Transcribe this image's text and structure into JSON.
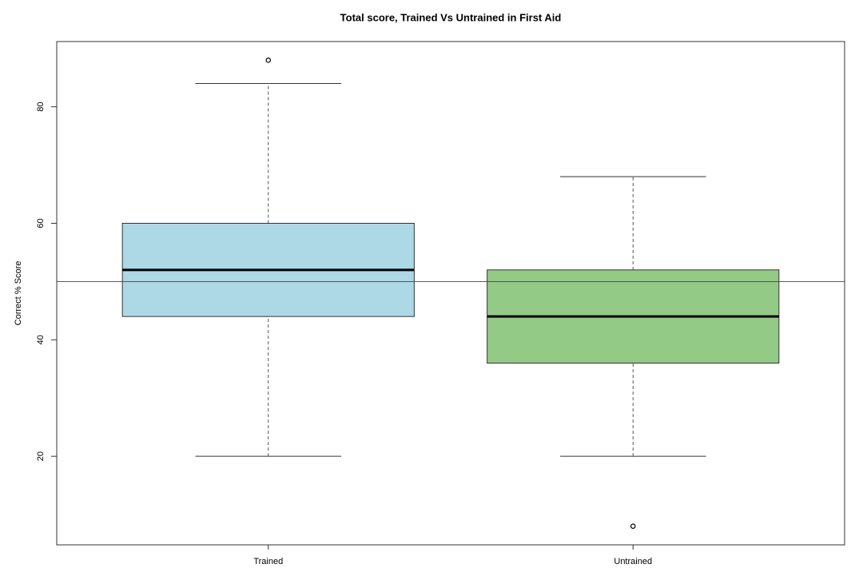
{
  "chart_data": {
    "type": "box",
    "title": "Total score, Trained Vs Untrained in First Aid",
    "y_label": "Correct % Score",
    "categories": [
      "Trained",
      "Untrained"
    ],
    "boxes": [
      {
        "whisker_low": 20,
        "q1": 44,
        "median": 52,
        "q3": 60,
        "whisker_high": 84,
        "outliers": [
          88
        ],
        "color": "#add8e6"
      },
      {
        "whisker_low": 20,
        "q1": 36,
        "median": 44,
        "q3": 52,
        "whisker_high": 68,
        "outliers": [
          8
        ],
        "color": "#93ca86"
      }
    ],
    "reference_line": 50,
    "ylim": [
      4.8,
      91.2
    ],
    "yticks": [
      20,
      40,
      60,
      80
    ]
  }
}
